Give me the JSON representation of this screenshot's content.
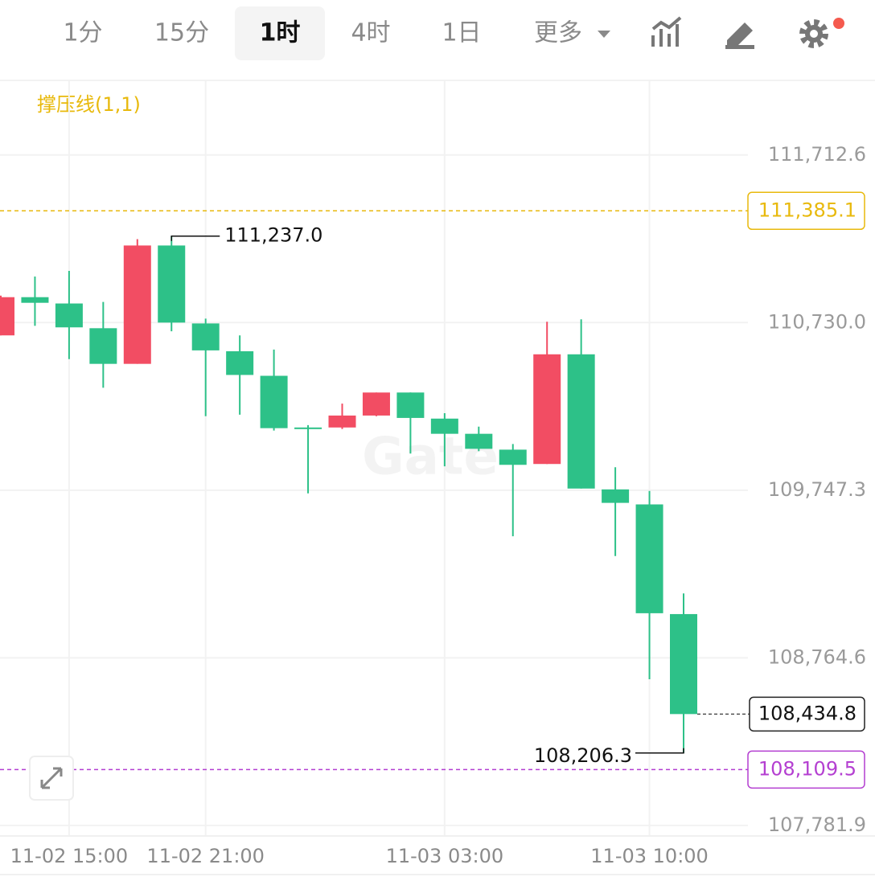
{
  "toolbar": {
    "intervals": [
      "1分",
      "15分",
      "1时",
      "4时",
      "1日"
    ],
    "active": 2,
    "more": "更多"
  },
  "chart_data": {
    "type": "candlestick",
    "indicator_label": "撑压线(1,1)",
    "watermark": "Gate",
    "categories": [
      null,
      null,
      "11-02 15:00",
      null,
      null,
      null,
      "11-02 21:00",
      null,
      null,
      null,
      null,
      null,
      null,
      "11-03 03:00",
      null,
      null,
      null,
      null,
      null,
      "11-03 10:00",
      null
    ],
    "open": [
      110655,
      110879,
      110842,
      110697,
      110488,
      111182,
      110725,
      110562,
      110418,
      110115,
      110115,
      110185,
      110320,
      110167,
      110078,
      109985,
      109901,
      110544,
      109752,
      109664,
      109021
    ],
    "high": [
      110888,
      111000,
      111033,
      110851,
      111219,
      111237.0,
      110753,
      110655,
      110572,
      110129,
      110255,
      110320,
      110320,
      110199,
      110120,
      110018,
      110735,
      110749,
      109882,
      109743,
      109142
    ],
    "low": [
      110655,
      110711,
      110516,
      110348,
      110488,
      110679,
      110181,
      110190,
      110097,
      109729,
      110106,
      110181,
      109962,
      109887,
      109976,
      109477,
      109901,
      109757,
      109361,
      108639,
      108206.3
    ],
    "close": [
      110879,
      110846,
      110702,
      110488,
      111182,
      110730,
      110567,
      110423,
      110111,
      110106,
      110185,
      110320,
      110171,
      110078,
      109990,
      109896,
      110544,
      109757,
      109673,
      109026,
      108434.8
    ],
    "up_color": "#f24d63",
    "down_color": "#2dc188",
    "ylim": [
      107720,
      112150
    ],
    "yticks": [
      {
        "value": 111712.6,
        "label": "111,712.6"
      },
      {
        "value": 110730.0,
        "label": "110,730.0"
      },
      {
        "value": 109747.3,
        "label": "109,747.3"
      },
      {
        "value": 108764.6,
        "label": "108,764.6"
      },
      {
        "value": 107781.9,
        "label": "107,781.9"
      }
    ],
    "grid": true,
    "high_label": "111,237.0",
    "low_label": "108,206.3",
    "levels": [
      {
        "value": 111385.1,
        "label": "111,385.1",
        "color": "#e8b90c"
      },
      {
        "value": 108109.5,
        "label": "108,109.5",
        "color": "#b43fd1"
      }
    ],
    "last_price": {
      "value": 108434.8,
      "label": "108,434.8"
    }
  }
}
